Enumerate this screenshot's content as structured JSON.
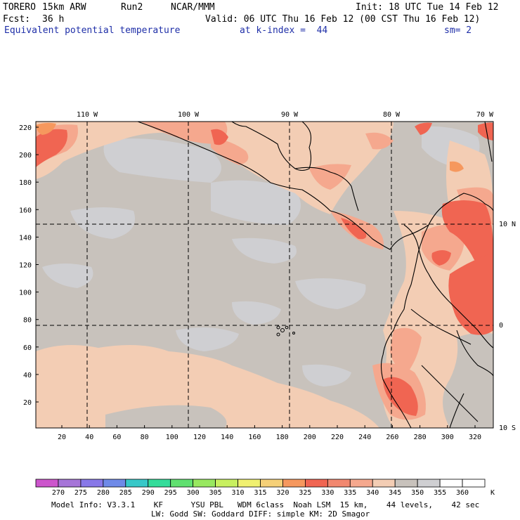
{
  "header": {
    "model": "TORERO",
    "resolution": "15km ARW",
    "run": "Run2",
    "org": "NCAR/MMM",
    "init": "Init: 18 UTC Tue 14 Feb 12",
    "fcst_label": "Fcst:",
    "fcst_value": "36 h",
    "valid": "Valid: 06 UTC Thu 16 Feb 12 (00 CST Thu 16 Feb 12)",
    "field": "Equivalent potential temperature",
    "level": "at k-index =  44",
    "smoothing": "sm= 2"
  },
  "map": {
    "top_lon_labels": [
      "110 W",
      "100 W",
      "90 W",
      "80 W",
      "70 W"
    ],
    "right_lat_labels": [
      "10 N",
      "0",
      "10 S"
    ],
    "left_grid_labels": [
      "220",
      "200",
      "180",
      "160",
      "140",
      "120",
      "100",
      "80",
      "60",
      "40",
      "20"
    ],
    "bottom_grid_labels": [
      "20",
      "40",
      "60",
      "80",
      "100",
      "120",
      "140",
      "160",
      "180",
      "200",
      "220",
      "240",
      "260",
      "280",
      "300",
      "320"
    ],
    "colors": {
      "background_gray": "#c8c2bc",
      "light_gray": "#cfcfd2",
      "peach": "#f3cdb4",
      "salmon": "#f5a88e",
      "red": "#f06552",
      "orange": "#f6985e"
    }
  },
  "colorbar": {
    "unit": "K",
    "labels": [
      "270",
      "275",
      "280",
      "285",
      "290",
      "295",
      "300",
      "305",
      "310",
      "315",
      "320",
      "325",
      "330",
      "335",
      "340",
      "345",
      "350",
      "355",
      "360"
    ],
    "colors": [
      "#cc55cc",
      "#a675d8",
      "#8878e8",
      "#6f8ae8",
      "#38c8c8",
      "#34dc9a",
      "#60e070",
      "#98e860",
      "#c8f060",
      "#f0f070",
      "#f5d078",
      "#f6985e",
      "#f06552",
      "#f28870",
      "#f5a88e",
      "#f3cdb4",
      "#c8c2bc",
      "#cfcfd2",
      "#ffffff"
    ]
  },
  "footer": {
    "line1": "Model Info: V3.3.1    KF      YSU PBL   WDM 6class  Noah LSM  15 km,    44 levels,    42 sec",
    "line2": "LW: Godd SW: Goddard DIFF: simple KM: 2D Smagor"
  }
}
